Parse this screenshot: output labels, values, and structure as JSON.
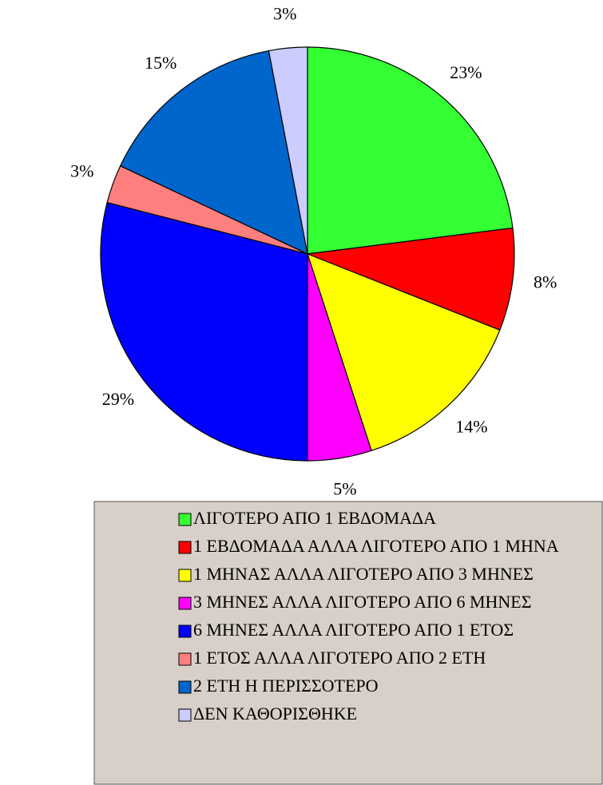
{
  "chart_data": {
    "type": "pie",
    "categories": [
      "ΛΙΓΟΤΕΡΟ ΑΠΟ 1 ΕΒΔΟΜΑΔΑ",
      "1 ΕΒΔΟΜΑΔΑ ΑΛΛΑ ΛΙΓΟΤΕΡΟ ΑΠΟ 1 ΜΗΝΑ",
      "1 ΜΗΝΑΣ ΑΛΛΑ ΛΙΓΟΤΕΡΟ ΑΠΟ 3 ΜΗΝΕΣ",
      "3 ΜΗΝΕΣ ΑΛΛΑ ΛΙΓΟΤΕΡΟ ΑΠΟ 6 ΜΗΝΕΣ",
      "6 ΜΗΝΕΣ ΑΛΛΑ ΛΙΓΟΤΕΡΟ ΑΠΟ 1 ΕΤΟΣ",
      "1 ΕΤΟΣ ΑΛΛΑ ΛΙΓΟΤΕΡΟ ΑΠΟ 2 ΕΤΗ",
      "2 ΕΤΗ Η ΠΕΡΙΣΣΟΤΕΡΟ",
      "ΔΕΝ ΚΑΘΟΡΙΣΘΗΚΕ"
    ],
    "values": [
      23,
      8,
      14,
      5,
      29,
      3,
      15,
      3
    ],
    "value_labels": [
      "23%",
      "8%",
      "14%",
      "5%",
      "29%",
      "3%",
      "15%",
      "3%"
    ],
    "colors": [
      "#33ff33",
      "#ff0000",
      "#ffff00",
      "#ff00ff",
      "#0000ff",
      "#ff7f7f",
      "#0066cc",
      "#ccccff"
    ],
    "legend": "bottom"
  }
}
